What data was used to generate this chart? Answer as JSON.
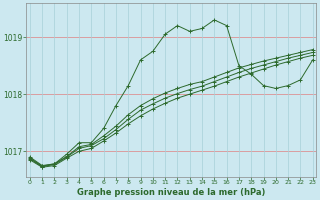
{
  "title": "Graphe pression niveau de la mer (hPa)",
  "bg_color": "#cce8f0",
  "grid_color_h": "#e08080",
  "grid_color_v": "#a8d0d8",
  "line_color": "#2d6a2d",
  "x_ticks": [
    0,
    1,
    2,
    3,
    4,
    5,
    6,
    7,
    8,
    9,
    10,
    11,
    12,
    13,
    14,
    15,
    16,
    17,
    18,
    19,
    20,
    21,
    22,
    23
  ],
  "y_ticks": [
    1017,
    1018,
    1019
  ],
  "ylim": [
    1016.55,
    1019.6
  ],
  "xlim": [
    -0.3,
    23.3
  ],
  "line1": [
    1016.9,
    1016.75,
    1016.78,
    1016.95,
    1017.15,
    1017.15,
    1017.4,
    1017.8,
    1018.15,
    1018.6,
    1018.75,
    1019.05,
    1019.2,
    1019.1,
    1019.15,
    1019.3,
    1019.2,
    1018.5,
    1018.35,
    1018.15,
    1018.1,
    1018.15,
    1018.25,
    1018.6
  ],
  "line2": [
    1016.85,
    1016.72,
    1016.75,
    1016.88,
    1017.0,
    1017.05,
    1017.18,
    1017.32,
    1017.48,
    1017.62,
    1017.74,
    1017.84,
    1017.93,
    1018.0,
    1018.07,
    1018.14,
    1018.22,
    1018.3,
    1018.37,
    1018.44,
    1018.51,
    1018.57,
    1018.63,
    1018.68
  ],
  "line3": [
    1016.87,
    1016.73,
    1016.77,
    1016.9,
    1017.05,
    1017.1,
    1017.22,
    1017.38,
    1017.56,
    1017.72,
    1017.83,
    1017.93,
    1018.01,
    1018.08,
    1018.14,
    1018.22,
    1018.3,
    1018.38,
    1018.45,
    1018.51,
    1018.57,
    1018.63,
    1018.68,
    1018.73
  ],
  "line4": [
    1016.88,
    1016.74,
    1016.78,
    1016.91,
    1017.08,
    1017.12,
    1017.27,
    1017.44,
    1017.64,
    1017.8,
    1017.92,
    1018.02,
    1018.1,
    1018.17,
    1018.22,
    1018.3,
    1018.38,
    1018.46,
    1018.52,
    1018.58,
    1018.63,
    1018.68,
    1018.73,
    1018.78
  ]
}
